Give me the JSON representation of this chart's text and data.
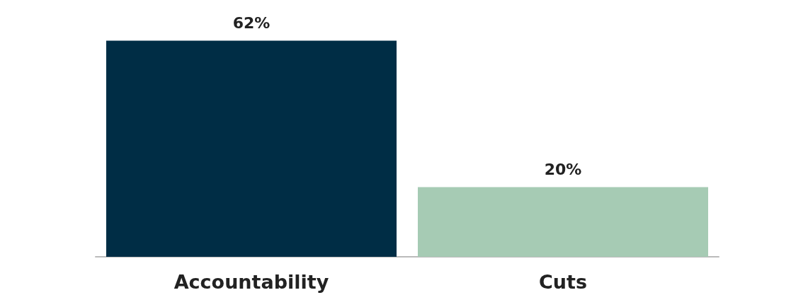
{
  "chart_data": {
    "type": "bar",
    "categories": [
      "Accountability",
      "Cuts"
    ],
    "values": [
      62,
      20
    ],
    "colors": [
      "#002d45",
      "#a6cbb4"
    ],
    "value_labels": [
      "62%",
      "20%"
    ]
  }
}
